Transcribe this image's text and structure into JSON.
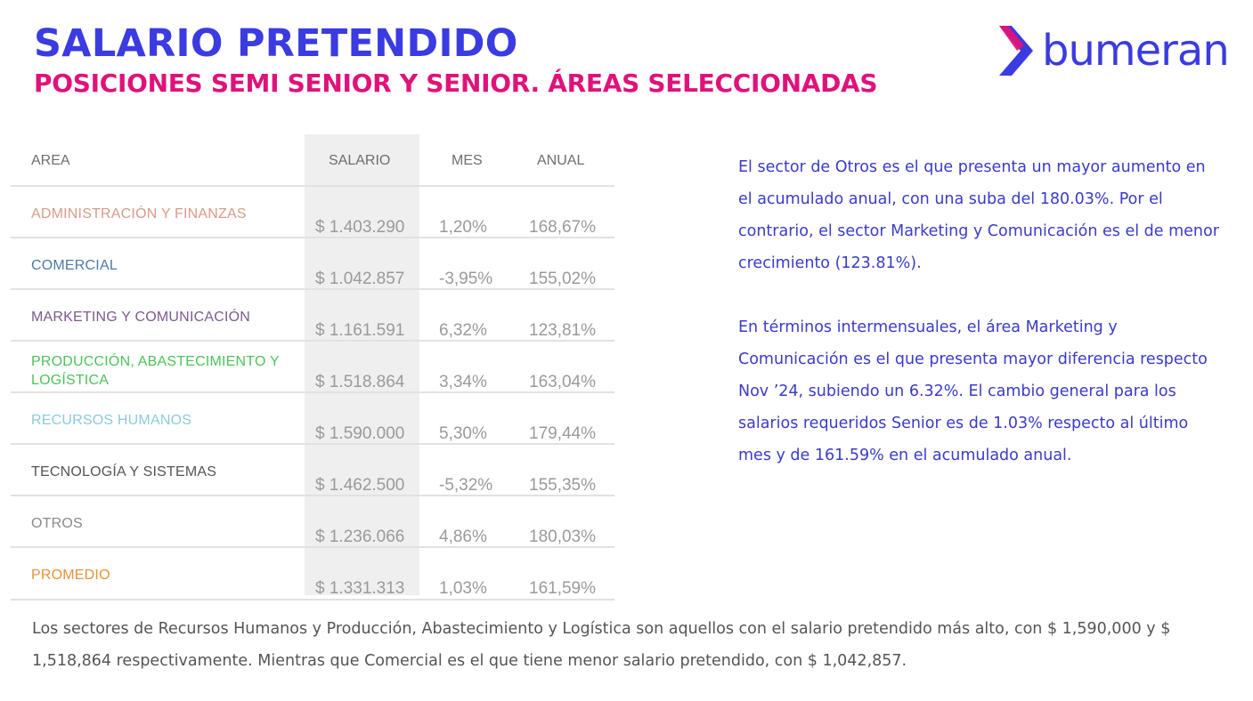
{
  "header": {
    "title": "SALARIO PRETENDIDO",
    "subtitle": "POSICIONES SEMI SENIOR Y SENIOR. ÁREAS SELECCIONADAS"
  },
  "logo": {
    "text": "bumeran",
    "colors": {
      "text": "#3a3be0",
      "mark_primary": "#3a3be0",
      "mark_accent": "#e0127a"
    }
  },
  "table": {
    "headers": {
      "area": "AREA",
      "salario": "SALARIO",
      "mes": "MES",
      "anual": "ANUAL"
    },
    "rows": [
      {
        "area": "ADMINISTRACIÓN Y FINANZAS",
        "salario": "$ 1.403.290",
        "mes": "1,20%",
        "anual": "168,67%",
        "color": "#d99a8a"
      },
      {
        "area": "COMERCIAL",
        "salario": "$ 1.042.857",
        "mes": "-3,95%",
        "anual": "155,02%",
        "color": "#4d7aa6"
      },
      {
        "area": "MARKETING Y COMUNICACIÓN",
        "salario": "$ 1.161.591",
        "mes": "6,32%",
        "anual": "123,81%",
        "color": "#7d5a8c"
      },
      {
        "area": "PRODUCCIÓN, ABASTECIMIENTO Y LOGÍSTICA",
        "salario": "$ 1.518.864",
        "mes": "3,34%",
        "anual": "163,04%",
        "color": "#4ec35a"
      },
      {
        "area": "RECURSOS HUMANOS",
        "salario": "$ 1.590.000",
        "mes": "5,30%",
        "anual": "179,44%",
        "color": "#8ec9dc"
      },
      {
        "area": "TECNOLOGÍA Y SISTEMAS",
        "salario": "$ 1.462.500",
        "mes": "-5,32%",
        "anual": "155,35%",
        "color": "#555555"
      },
      {
        "area": "OTROS",
        "salario": "$ 1.236.066",
        "mes": "4,86%",
        "anual": "180,03%",
        "color": "#8a8a8a"
      },
      {
        "area": "PROMEDIO",
        "salario": "$ 1.331.313",
        "mes": "1,03%",
        "anual": "161,59%",
        "color": "#e8913a"
      }
    ]
  },
  "side": {
    "paragraph1": "El sector de Otros es el que presenta un mayor aumento en el acumulado anual, con una suba del 180.03%. Por el contrario, el sector Marketing y Comunicación es el de menor crecimiento (123.81%).",
    "paragraph2": "En términos intermensuales, el área Marketing y Comunicación es el que presenta mayor diferencia respecto Nov ’24, subiendo un 6.32%. El cambio general para los salarios requeridos Senior es de 1.03% respecto al último mes y de 161.59% en el acumulado anual."
  },
  "footer": {
    "text": "Los sectores de Recursos Humanos y Producción, Abastecimiento y Logística son aquellos con el salario pretendido más alto, con $ 1,590,000 y $ 1,518,864 respectivamente. Mientras que Comercial es el que tiene menor salario pretendido, con $ 1,042,857."
  }
}
